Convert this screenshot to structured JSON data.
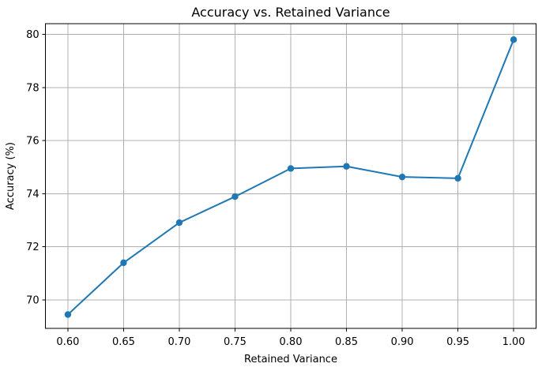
{
  "chart_data": {
    "type": "line",
    "title": "Accuracy vs. Retained Variance",
    "xlabel": "Retained Variance",
    "ylabel": "Accuracy (%)",
    "x": [
      0.6,
      0.65,
      0.7,
      0.75,
      0.8,
      0.85,
      0.9,
      0.95,
      1.0
    ],
    "y": [
      69.45,
      71.4,
      72.91,
      73.89,
      74.95,
      75.03,
      74.63,
      74.58,
      79.8
    ],
    "xtick_labels": [
      "0.60",
      "0.65",
      "0.70",
      "0.75",
      "0.80",
      "0.85",
      "0.90",
      "0.95",
      "1.00"
    ],
    "xtick_values": [
      0.6,
      0.65,
      0.7,
      0.75,
      0.8,
      0.85,
      0.9,
      0.95,
      1.0
    ],
    "ytick_labels": [
      "70",
      "72",
      "74",
      "76",
      "78",
      "80"
    ],
    "ytick_values": [
      70,
      72,
      74,
      76,
      78,
      80
    ],
    "xlim": [
      0.58,
      1.02
    ],
    "ylim": [
      68.93,
      80.4
    ],
    "grid": true,
    "legend": "none",
    "line_color": "#1f77b4",
    "marker": "circle",
    "grid_color": "#b0b0b0",
    "spine_color": "#000000",
    "background_color": "#ffffff"
  }
}
